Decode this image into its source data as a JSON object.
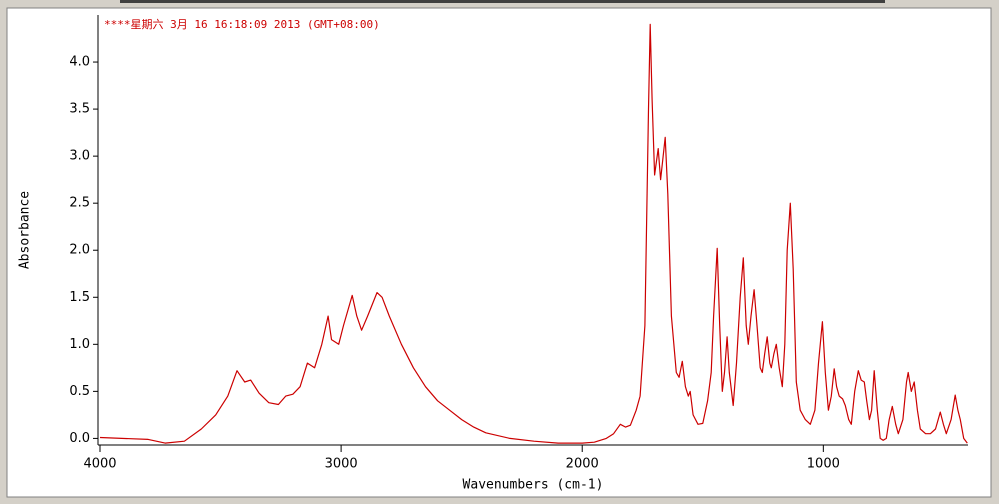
{
  "chart_data": {
    "type": "line",
    "title": "****星期六 3月 16 16:18:09 2013 (GMT+08:00)",
    "xlabel": "Wavenumbers (cm-1)",
    "ylabel": "Absorbance",
    "color": "#cc0000",
    "x": [
      4000,
      3800,
      3730,
      3650,
      3580,
      3520,
      3470,
      3432,
      3400,
      3375,
      3340,
      3300,
      3260,
      3230,
      3200,
      3170,
      3140,
      3110,
      3080,
      3054,
      3040,
      3010,
      2990,
      2954,
      2935,
      2915,
      2890,
      2851,
      2830,
      2800,
      2750,
      2700,
      2650,
      2600,
      2550,
      2500,
      2450,
      2400,
      2300,
      2200,
      2100,
      2000,
      1950,
      1900,
      1870,
      1842,
      1820,
      1800,
      1776,
      1760,
      1740,
      1725,
      1718,
      1710,
      1700,
      1685,
      1675,
      1656,
      1645,
      1630,
      1610,
      1598,
      1585,
      1572,
      1560,
      1552,
      1540,
      1520,
      1500,
      1480,
      1465,
      1455,
      1440,
      1430,
      1419,
      1410,
      1399,
      1390,
      1374,
      1360,
      1345,
      1332,
      1320,
      1311,
      1300,
      1287,
      1275,
      1262,
      1253,
      1243,
      1233,
      1222,
      1216,
      1205,
      1195,
      1183,
      1170,
      1160,
      1150,
      1137,
      1125,
      1112,
      1096,
      1075,
      1054,
      1035,
      1020,
      1004,
      992,
      979,
      967,
      955,
      945,
      934,
      920,
      909,
      895,
      884,
      870,
      855,
      843,
      830,
      820,
      809,
      800,
      789,
      776,
      764,
      752,
      739,
      727,
      714,
      700,
      689,
      670,
      655,
      648,
      635,
      623,
      610,
      598,
      576,
      556,
      535,
      515,
      502,
      490,
      470,
      453,
      442,
      432,
      418,
      403
    ],
    "values": [
      0.01,
      -0.01,
      -0.05,
      -0.03,
      0.1,
      0.25,
      0.45,
      0.72,
      0.6,
      0.62,
      0.48,
      0.38,
      0.36,
      0.45,
      0.47,
      0.55,
      0.8,
      0.75,
      1.0,
      1.3,
      1.05,
      1.0,
      1.2,
      1.52,
      1.3,
      1.15,
      1.3,
      1.55,
      1.5,
      1.3,
      1.0,
      0.75,
      0.55,
      0.4,
      0.3,
      0.2,
      0.12,
      0.06,
      0.0,
      -0.03,
      -0.05,
      -0.05,
      -0.04,
      0.0,
      0.05,
      0.15,
      0.12,
      0.14,
      0.3,
      0.45,
      1.2,
      3.5,
      4.4,
      3.6,
      2.8,
      3.08,
      2.75,
      3.2,
      2.6,
      1.3,
      0.7,
      0.65,
      0.82,
      0.55,
      0.45,
      0.5,
      0.25,
      0.15,
      0.16,
      0.4,
      0.7,
      1.3,
      2.02,
      1.2,
      0.5,
      0.7,
      1.08,
      0.7,
      0.35,
      0.8,
      1.5,
      1.92,
      1.2,
      1.0,
      1.3,
      1.58,
      1.2,
      0.75,
      0.7,
      0.9,
      1.08,
      0.8,
      0.75,
      0.9,
      1.0,
      0.75,
      0.55,
      1.0,
      2.0,
      2.5,
      1.8,
      0.6,
      0.3,
      0.2,
      0.15,
      0.3,
      0.8,
      1.24,
      0.7,
      0.3,
      0.45,
      0.74,
      0.55,
      0.45,
      0.42,
      0.35,
      0.2,
      0.15,
      0.5,
      0.72,
      0.62,
      0.6,
      0.4,
      0.2,
      0.3,
      0.72,
      0.3,
      0.0,
      -0.02,
      0.0,
      0.2,
      0.34,
      0.15,
      0.05,
      0.2,
      0.6,
      0.7,
      0.5,
      0.6,
      0.3,
      0.1,
      0.05,
      0.05,
      0.1,
      0.28,
      0.15,
      0.05,
      0.2,
      0.46,
      0.3,
      0.2,
      0.0,
      -0.05
    ],
    "xlim": [
      4000,
      400
    ],
    "xticks": [
      4000,
      3000,
      2000,
      1000
    ],
    "ylim": [
      -0.07,
      4.5
    ],
    "yticks": [
      {
        "value": 0,
        "label": "0.0"
      },
      0.5,
      {
        "value": 1,
        "label": "1.0"
      },
      1.5,
      {
        "value": 2,
        "label": "2.0"
      },
      2.5,
      {
        "value": 3,
        "label": "3.0"
      },
      3.5,
      {
        "value": 4,
        "label": "4.0"
      }
    ]
  }
}
